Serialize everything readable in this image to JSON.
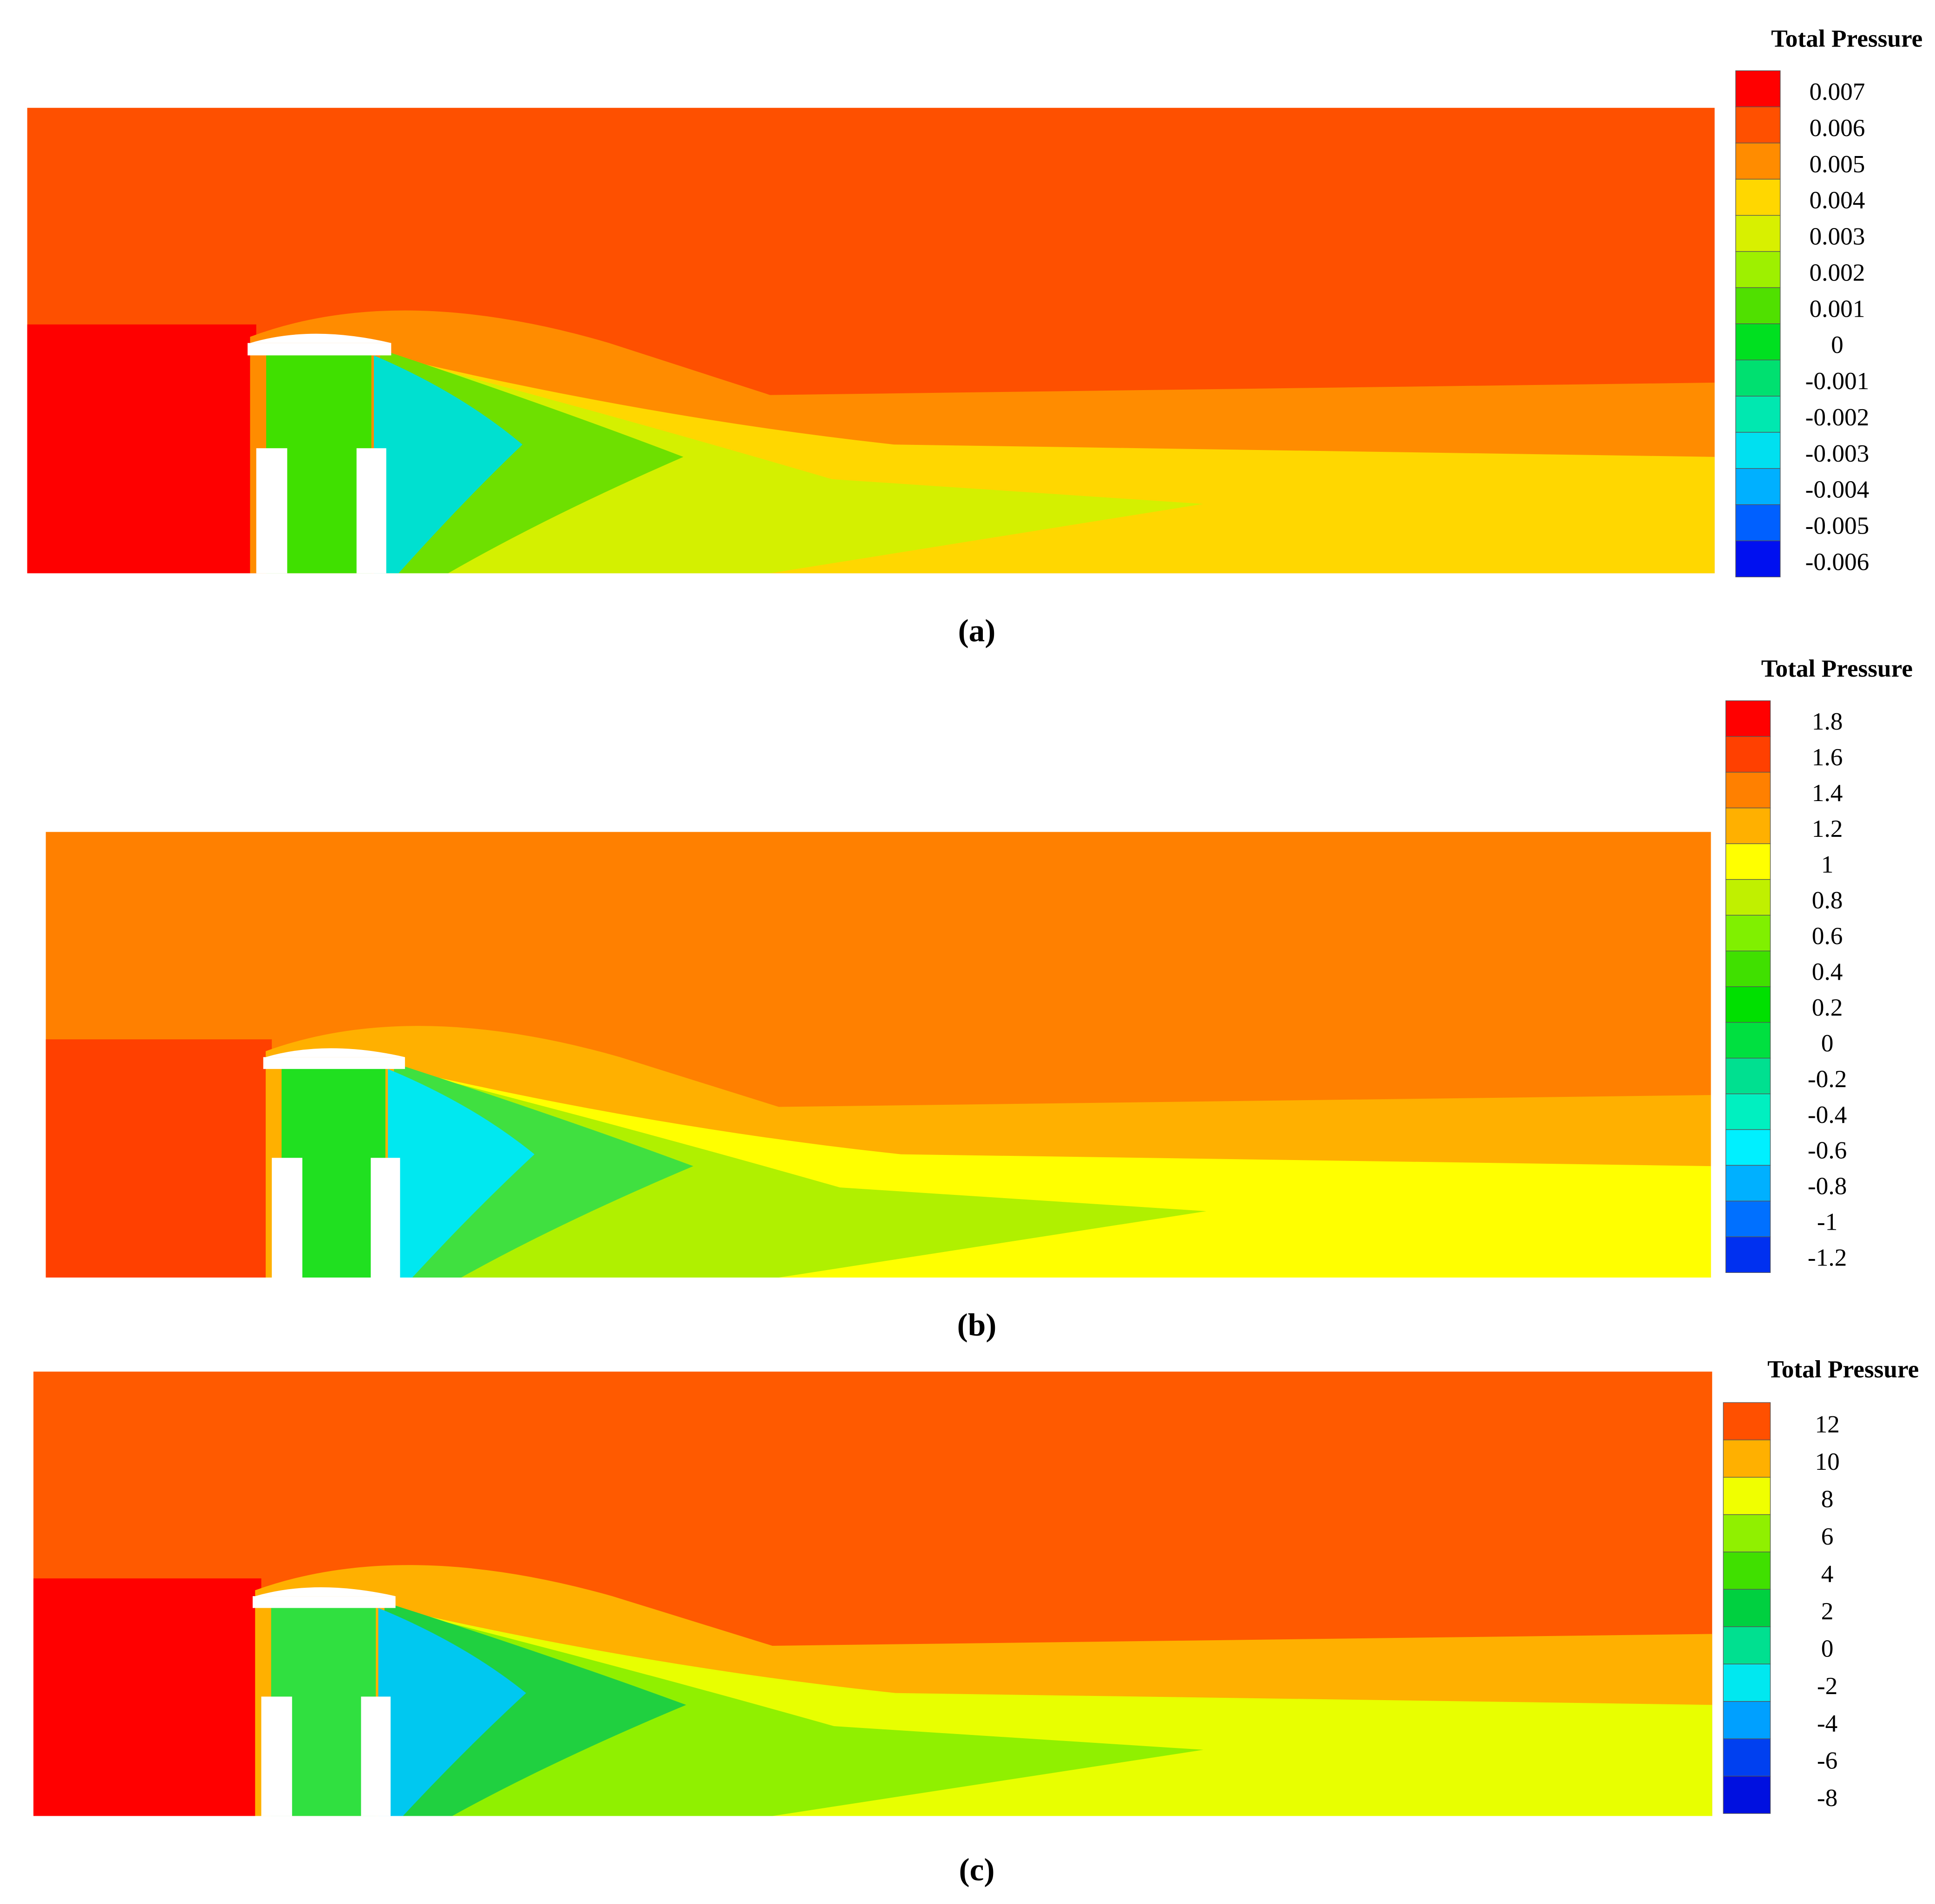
{
  "panels": [
    {
      "label": "(a)",
      "legend": {
        "title": "Total Pressure",
        "labels": [
          "0.007",
          "0.006",
          "0.005",
          "0.004",
          "0.003",
          "0.002",
          "0.001",
          "0",
          "-0.001",
          "-0.002",
          "-0.003",
          "-0.004",
          "-0.005",
          "-0.006"
        ],
        "colors": [
          "#ff0000",
          "#ff5000",
          "#ff8c00",
          "#ffd700",
          "#d8f000",
          "#9ef000",
          "#50e000",
          "#00e020",
          "#00e070",
          "#00e8b0",
          "#00e0f0",
          "#00b0ff",
          "#0060ff",
          "#0010f0"
        ]
      }
    },
    {
      "label": "(b)",
      "legend": {
        "title": "Total Pressure",
        "labels": [
          "1.8",
          "1.6",
          "1.4",
          "1.2",
          "1",
          "0.8",
          "0.6",
          "0.4",
          "0.2",
          "0",
          "-0.2",
          "-0.4",
          "-0.6",
          "-0.8",
          "-1",
          "-1.2"
        ],
        "colors": [
          "#ff0000",
          "#ff4000",
          "#ff8000",
          "#ffb000",
          "#ffff00",
          "#c0f000",
          "#80f000",
          "#40e000",
          "#00e000",
          "#00e040",
          "#00e090",
          "#00f0c0",
          "#00f0ff",
          "#00b0ff",
          "#0070ff",
          "#0030f0"
        ]
      }
    },
    {
      "label": "(c)",
      "legend": {
        "title": "Total Pressure",
        "labels": [
          "12",
          "10",
          "8",
          "6",
          "4",
          "2",
          "0",
          "-2",
          "-4",
          "-6",
          "-8"
        ],
        "colors": [
          "#ff5000",
          "#ffb000",
          "#f0ff00",
          "#90f000",
          "#40e000",
          "#00d040",
          "#00e090",
          "#00e8f0",
          "#00a0ff",
          "#0040f0",
          "#0010e0"
        ]
      }
    }
  ]
}
